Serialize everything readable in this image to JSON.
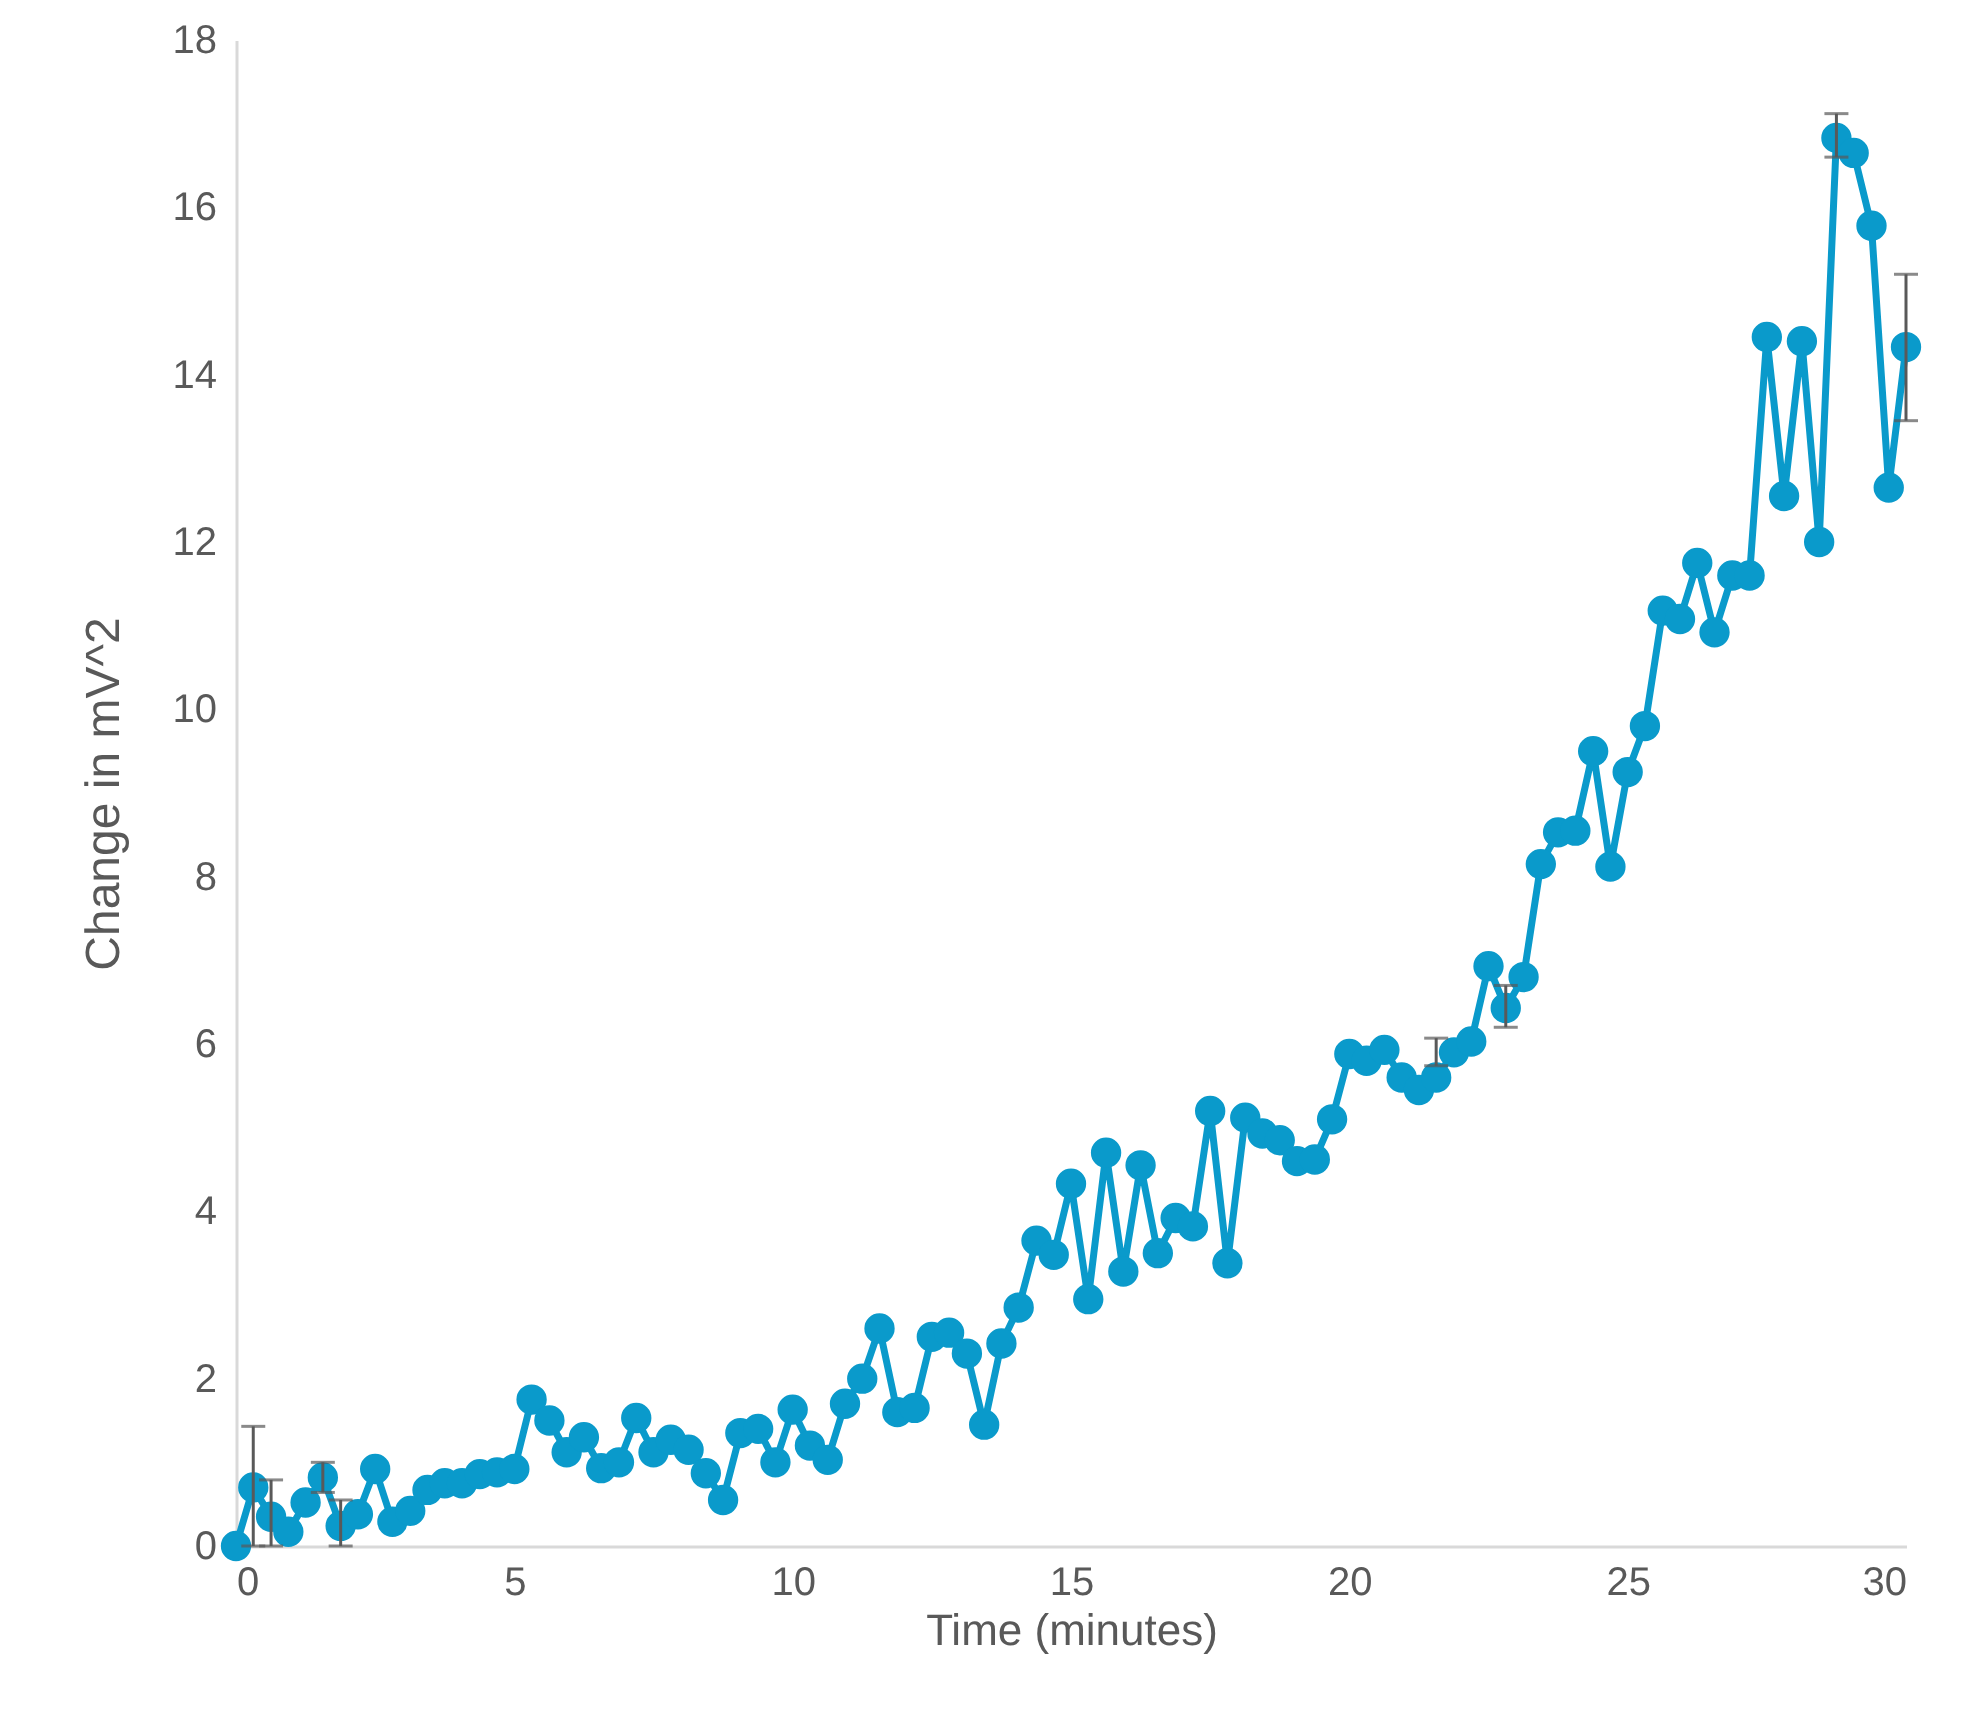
{
  "chart_data": {
    "type": "line",
    "xlabel": "Time (minutes)",
    "ylabel": "Change in mV^2",
    "xlim": [
      0,
      30
    ],
    "xticks": [
      0,
      5,
      10,
      15,
      20,
      25,
      30
    ],
    "ylim": [
      0,
      18
    ],
    "yticks": [
      0,
      2,
      4,
      6,
      8,
      10,
      12,
      14,
      16,
      18
    ],
    "grid": false,
    "marker": "circle",
    "line_style": "solid",
    "x": [
      0,
      0.31,
      0.63,
      0.94,
      1.25,
      1.56,
      1.88,
      2.19,
      2.5,
      2.81,
      3.13,
      3.44,
      3.75,
      4.06,
      4.38,
      4.69,
      5,
      5.31,
      5.63,
      5.94,
      6.25,
      6.56,
      6.88,
      7.19,
      7.5,
      7.81,
      8.13,
      8.44,
      8.75,
      9.06,
      9.38,
      9.69,
      10,
      10.31,
      10.63,
      10.94,
      11.25,
      11.56,
      11.88,
      12.19,
      12.5,
      12.81,
      13.13,
      13.44,
      13.75,
      14.06,
      14.38,
      14.69,
      15,
      15.31,
      15.63,
      15.94,
      16.25,
      16.56,
      16.88,
      17.19,
      17.5,
      17.81,
      18.13,
      18.44,
      18.75,
      19.06,
      19.38,
      19.69,
      20,
      20.31,
      20.63,
      20.94,
      21.25,
      21.56,
      21.88,
      22.19,
      22.5,
      22.81,
      23.13,
      23.44,
      23.75,
      24.06,
      24.38,
      24.69,
      25,
      25.31,
      25.63,
      25.94,
      26.25,
      26.56,
      26.88,
      27.19,
      27.5,
      27.81,
      28.13,
      28.44,
      28.75,
      29.06,
      29.38,
      29.69,
      30
    ],
    "series": [
      {
        "color": "#0a9acb",
        "values": [
          0,
          0.7,
          0.35,
          0.17,
          0.52,
          0.82,
          0.24,
          0.38,
          0.92,
          0.29,
          0.42,
          0.67,
          0.75,
          0.75,
          0.86,
          0.88,
          0.92,
          1.75,
          1.5,
          1.12,
          1.3,
          0.93,
          1.0,
          1.53,
          1.12,
          1.27,
          1.15,
          0.87,
          0.55,
          1.35,
          1.4,
          1.0,
          1.63,
          1.2,
          1.03,
          1.7,
          2.0,
          2.6,
          1.6,
          1.65,
          2.5,
          2.55,
          2.3,
          1.45,
          2.42,
          2.85,
          3.65,
          3.48,
          4.33,
          2.95,
          4.7,
          3.28,
          4.55,
          3.5,
          3.92,
          3.82,
          5.2,
          3.38,
          5.12,
          4.93,
          4.85,
          4.6,
          4.62,
          5.1,
          5.88,
          5.8,
          5.93,
          5.6,
          5.45,
          5.6,
          5.9,
          6.03,
          6.93,
          6.43,
          6.8,
          8.15,
          8.53,
          8.55,
          9.5,
          8.12,
          9.25,
          9.8,
          11.18,
          11.08,
          11.75,
          10.92,
          11.6,
          11.6,
          14.45,
          12.55,
          14.4,
          12.0,
          16.83,
          16.65,
          15.78,
          12.65,
          14.33
        ],
        "errors": [
          null,
          [
            0,
            1.43
          ],
          [
            0,
            0.79
          ],
          null,
          null,
          [
            0.64,
            1.0
          ],
          [
            0,
            0.55
          ],
          null,
          null,
          null,
          null,
          null,
          null,
          null,
          null,
          null,
          null,
          null,
          null,
          null,
          null,
          null,
          null,
          null,
          null,
          null,
          null,
          null,
          null,
          null,
          null,
          null,
          null,
          null,
          null,
          null,
          null,
          null,
          null,
          null,
          null,
          null,
          null,
          null,
          null,
          null,
          null,
          null,
          null,
          null,
          null,
          null,
          null,
          null,
          null,
          null,
          null,
          null,
          null,
          null,
          null,
          null,
          null,
          null,
          null,
          null,
          null,
          null,
          null,
          [
            5.74,
            6.07
          ],
          null,
          null,
          null,
          [
            6.2,
            6.7
          ],
          null,
          null,
          null,
          null,
          null,
          null,
          null,
          null,
          null,
          null,
          null,
          null,
          null,
          null,
          null,
          null,
          null,
          null,
          [
            16.6,
            17.12
          ],
          null,
          null,
          null,
          [
            13.45,
            15.2
          ]
        ]
      }
    ]
  }
}
